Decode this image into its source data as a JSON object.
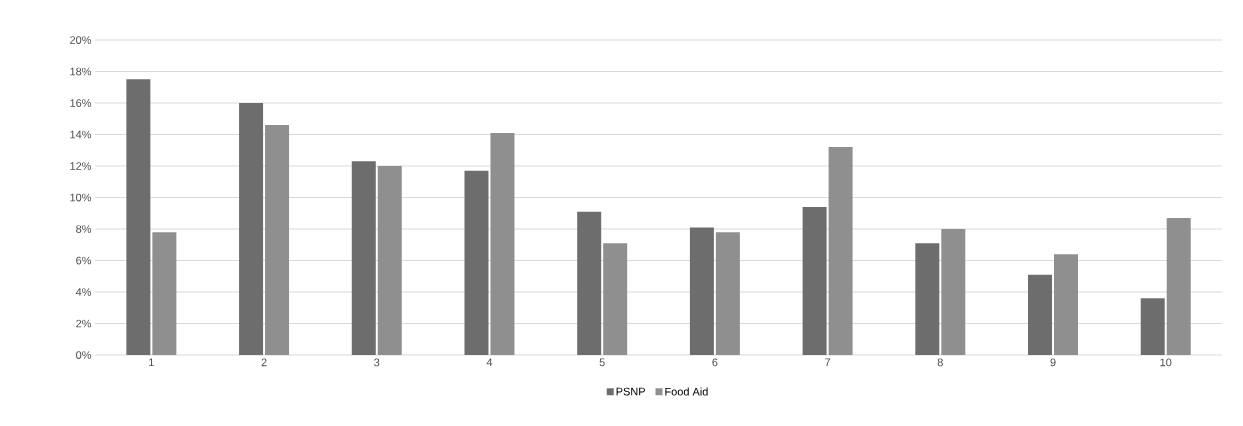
{
  "chart_data": {
    "type": "bar",
    "categories": [
      "1",
      "2",
      "3",
      "4",
      "5",
      "6",
      "7",
      "8",
      "9",
      "10"
    ],
    "series": [
      {
        "name": "PSNP",
        "color": "#6d6d6d",
        "values": [
          17.5,
          16.0,
          12.3,
          11.7,
          9.1,
          8.1,
          9.4,
          7.1,
          5.1,
          3.6
        ]
      },
      {
        "name": "Food Aid",
        "color": "#8f8f8f",
        "values": [
          7.8,
          14.6,
          12.0,
          14.1,
          7.1,
          7.8,
          13.2,
          8.0,
          6.4,
          8.7
        ]
      }
    ],
    "ylim": [
      0,
      20
    ],
    "yticks": [
      {
        "value": 0,
        "label": "0%"
      },
      {
        "value": 2,
        "label": "2%"
      },
      {
        "value": 4,
        "label": "4%"
      },
      {
        "value": 6,
        "label": "6%"
      },
      {
        "value": 8,
        "label": "8%"
      },
      {
        "value": 10,
        "label": "10%"
      },
      {
        "value": 12,
        "label": "12%"
      },
      {
        "value": 14,
        "label": "14%"
      },
      {
        "value": 16,
        "label": "16%"
      },
      {
        "value": 18,
        "label": "18%"
      },
      {
        "value": 20,
        "label": "20%"
      }
    ],
    "grid": "y",
    "legend": "bottom"
  }
}
